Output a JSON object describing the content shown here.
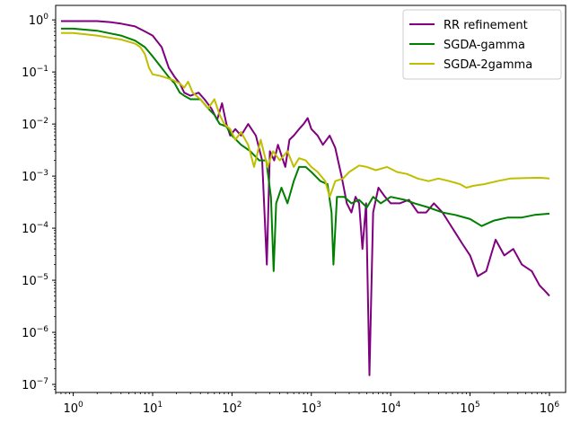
{
  "chart_data": {
    "type": "line",
    "title": "",
    "xlabel": "",
    "ylabel": "",
    "xscale": "log",
    "yscale": "log",
    "xlim": [
      0.6,
      1600000
    ],
    "ylim": [
      7e-08,
      1.9
    ],
    "x_ticks": [
      {
        "value": 1,
        "label": "10",
        "exp": "0"
      },
      {
        "value": 10,
        "label": "10",
        "exp": "1"
      },
      {
        "value": 100,
        "label": "10",
        "exp": "2"
      },
      {
        "value": 1000,
        "label": "10",
        "exp": "3"
      },
      {
        "value": 10000,
        "label": "10",
        "exp": "4"
      },
      {
        "value": 100000,
        "label": "10",
        "exp": "5"
      },
      {
        "value": 1000000,
        "label": "10",
        "exp": "6"
      }
    ],
    "y_ticks": [
      {
        "value": 1e-07,
        "label": "10",
        "exp": "−7"
      },
      {
        "value": 1e-06,
        "label": "10",
        "exp": "−6"
      },
      {
        "value": 1e-05,
        "label": "10",
        "exp": "−5"
      },
      {
        "value": 0.0001,
        "label": "10",
        "exp": "−4"
      },
      {
        "value": 0.001,
        "label": "10",
        "exp": "−3"
      },
      {
        "value": 0.01,
        "label": "10",
        "exp": "−2"
      },
      {
        "value": 0.1,
        "label": "10",
        "exp": "−1"
      },
      {
        "value": 1,
        "label": "10",
        "exp": "0"
      }
    ],
    "grid": false,
    "legend_position": "top-right",
    "series": [
      {
        "name": "RR refinement",
        "color": "#800080",
        "points": [
          [
            0.7,
            0.95
          ],
          [
            1,
            0.95
          ],
          [
            2,
            0.95
          ],
          [
            3,
            0.9
          ],
          [
            4,
            0.85
          ],
          [
            6,
            0.75
          ],
          [
            8,
            0.6
          ],
          [
            10,
            0.5
          ],
          [
            13,
            0.3
          ],
          [
            16,
            0.12
          ],
          [
            19,
            0.08
          ],
          [
            22,
            0.06
          ],
          [
            25,
            0.04
          ],
          [
            30,
            0.035
          ],
          [
            38,
            0.04
          ],
          [
            45,
            0.03
          ],
          [
            55,
            0.02
          ],
          [
            65,
            0.012
          ],
          [
            75,
            0.025
          ],
          [
            85,
            0.01
          ],
          [
            95,
            0.006
          ],
          [
            110,
            0.008
          ],
          [
            130,
            0.006
          ],
          [
            160,
            0.01
          ],
          [
            200,
            0.006
          ],
          [
            240,
            0.002
          ],
          [
            275,
            2e-05
          ],
          [
            300,
            0.003
          ],
          [
            340,
            0.002
          ],
          [
            380,
            0.004
          ],
          [
            420,
            0.0025
          ],
          [
            470,
            0.0015
          ],
          [
            530,
            0.005
          ],
          [
            600,
            0.006
          ],
          [
            700,
            0.008
          ],
          [
            800,
            0.01
          ],
          [
            900,
            0.013
          ],
          [
            1000,
            0.008
          ],
          [
            1200,
            0.006
          ],
          [
            1400,
            0.004
          ],
          [
            1700,
            0.006
          ],
          [
            2000,
            0.0035
          ],
          [
            2400,
            0.001
          ],
          [
            2800,
            0.0003
          ],
          [
            3200,
            0.0002
          ],
          [
            3600,
            0.0004
          ],
          [
            4000,
            0.0003
          ],
          [
            4400,
            4e-05
          ],
          [
            4900,
            0.0003
          ],
          [
            5400,
            1.5e-07
          ],
          [
            6000,
            0.0002
          ],
          [
            7000,
            0.0006
          ],
          [
            8500,
            0.0004
          ],
          [
            10000,
            0.0003
          ],
          [
            13000,
            0.0003
          ],
          [
            17000,
            0.00035
          ],
          [
            22000,
            0.0002
          ],
          [
            28000,
            0.0002
          ],
          [
            35000,
            0.0003
          ],
          [
            45000,
            0.0002
          ],
          [
            60000,
            0.0001
          ],
          [
            80000,
            5e-05
          ],
          [
            100000,
            3e-05
          ],
          [
            125000,
            1.2e-05
          ],
          [
            160000,
            1.5e-05
          ],
          [
            210000,
            6e-05
          ],
          [
            270000,
            3e-05
          ],
          [
            350000,
            4e-05
          ],
          [
            450000,
            2e-05
          ],
          [
            600000,
            1.5e-05
          ],
          [
            750000,
            8e-06
          ],
          [
            900000,
            6e-06
          ],
          [
            1000000,
            5e-06
          ]
        ]
      },
      {
        "name": "SGDA-gamma",
        "color": "#008000",
        "points": [
          [
            0.7,
            0.68
          ],
          [
            1,
            0.68
          ],
          [
            2,
            0.62
          ],
          [
            4,
            0.5
          ],
          [
            6,
            0.4
          ],
          [
            8,
            0.3
          ],
          [
            10,
            0.2
          ],
          [
            13,
            0.12
          ],
          [
            16,
            0.08
          ],
          [
            19,
            0.06
          ],
          [
            22,
            0.04
          ],
          [
            25,
            0.035
          ],
          [
            30,
            0.03
          ],
          [
            40,
            0.03
          ],
          [
            50,
            0.02
          ],
          [
            60,
            0.015
          ],
          [
            70,
            0.01
          ],
          [
            85,
            0.009
          ],
          [
            100,
            0.006
          ],
          [
            130,
            0.004
          ],
          [
            170,
            0.003
          ],
          [
            220,
            0.002
          ],
          [
            270,
            0.002
          ],
          [
            310,
            0.0004
          ],
          [
            335,
            1.5e-05
          ],
          [
            360,
            0.0003
          ],
          [
            420,
            0.0006
          ],
          [
            500,
            0.0003
          ],
          [
            600,
            0.0008
          ],
          [
            700,
            0.0015
          ],
          [
            850,
            0.0015
          ],
          [
            1000,
            0.0012
          ],
          [
            1300,
            0.0008
          ],
          [
            1600,
            0.0007
          ],
          [
            1800,
            0.0002
          ],
          [
            1900,
            2e-05
          ],
          [
            2100,
            0.0004
          ],
          [
            2600,
            0.0004
          ],
          [
            3200,
            0.0003
          ],
          [
            4000,
            0.00035
          ],
          [
            5000,
            0.00025
          ],
          [
            6000,
            0.0004
          ],
          [
            7500,
            0.0003
          ],
          [
            10000,
            0.0004
          ],
          [
            15000,
            0.00035
          ],
          [
            20000,
            0.0003
          ],
          [
            30000,
            0.00025
          ],
          [
            45000,
            0.0002
          ],
          [
            65000,
            0.00018
          ],
          [
            100000,
            0.00015
          ],
          [
            140000,
            0.00011
          ],
          [
            200000,
            0.00014
          ],
          [
            300000,
            0.00016
          ],
          [
            450000,
            0.00016
          ],
          [
            650000,
            0.00018
          ],
          [
            1000000,
            0.00019
          ]
        ]
      },
      {
        "name": "SGDA-2gamma",
        "color": "#bfbf00",
        "points": [
          [
            0.7,
            0.56
          ],
          [
            1,
            0.56
          ],
          [
            2,
            0.5
          ],
          [
            4,
            0.42
          ],
          [
            6,
            0.35
          ],
          [
            7,
            0.3
          ],
          [
            8,
            0.22
          ],
          [
            9,
            0.12
          ],
          [
            10,
            0.09
          ],
          [
            12,
            0.085
          ],
          [
            14,
            0.08
          ],
          [
            18,
            0.07
          ],
          [
            22,
            0.06
          ],
          [
            25,
            0.05
          ],
          [
            28,
            0.065
          ],
          [
            32,
            0.04
          ],
          [
            40,
            0.03
          ],
          [
            50,
            0.02
          ],
          [
            60,
            0.03
          ],
          [
            70,
            0.015
          ],
          [
            80,
            0.01
          ],
          [
            95,
            0.008
          ],
          [
            110,
            0.005
          ],
          [
            130,
            0.007
          ],
          [
            160,
            0.004
          ],
          [
            190,
            0.0015
          ],
          [
            230,
            0.005
          ],
          [
            280,
            0.0015
          ],
          [
            330,
            0.003
          ],
          [
            400,
            0.002
          ],
          [
            500,
            0.003
          ],
          [
            600,
            0.0015
          ],
          [
            700,
            0.0022
          ],
          [
            850,
            0.002
          ],
          [
            1000,
            0.0015
          ],
          [
            1200,
            0.0012
          ],
          [
            1500,
            0.0008
          ],
          [
            1700,
            0.0004
          ],
          [
            2000,
            0.0008
          ],
          [
            2500,
            0.0009
          ],
          [
            3000,
            0.0012
          ],
          [
            4000,
            0.0016
          ],
          [
            5000,
            0.0015
          ],
          [
            6500,
            0.0013
          ],
          [
            9000,
            0.0015
          ],
          [
            12000,
            0.0012
          ],
          [
            16000,
            0.0011
          ],
          [
            22000,
            0.0009
          ],
          [
            30000,
            0.0008
          ],
          [
            40000,
            0.0009
          ],
          [
            55000,
            0.0008
          ],
          [
            75000,
            0.0007
          ],
          [
            90000,
            0.0006
          ],
          [
            110000,
            0.00065
          ],
          [
            150000,
            0.0007
          ],
          [
            220000,
            0.0008
          ],
          [
            320000,
            0.0009
          ],
          [
            500000,
            0.00092
          ],
          [
            750000,
            0.00093
          ],
          [
            1000000,
            0.0009
          ]
        ]
      }
    ]
  }
}
